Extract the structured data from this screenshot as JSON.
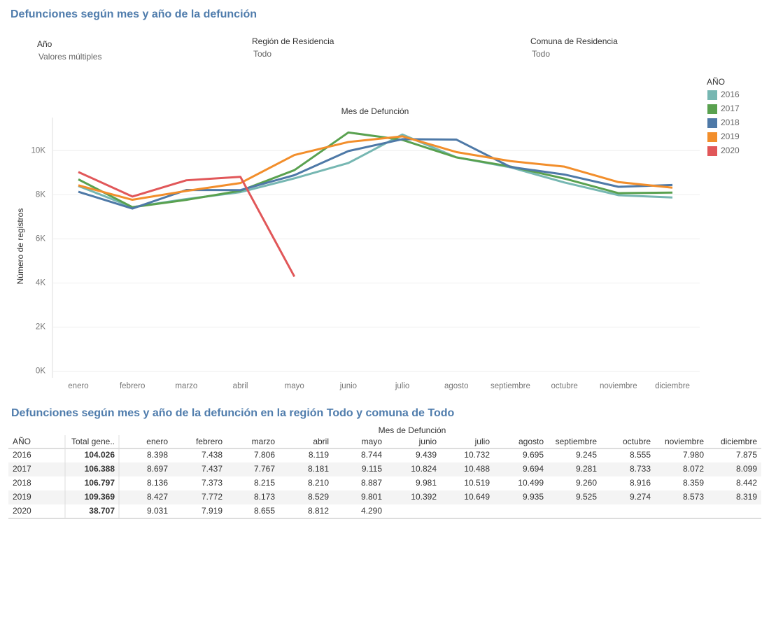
{
  "dashboard_title": "Defunciones según mes y año de la defunción",
  "filters": [
    {
      "label": "Año",
      "value": "Valores múltiples"
    },
    {
      "label": "Región de Residencia",
      "value": "Todo"
    },
    {
      "label": "Comuna de Residencia",
      "value": "Todo"
    }
  ],
  "chart_data": {
    "type": "line",
    "x_label": "Mes de Defunción",
    "y_label": "Número de registros",
    "legend_title": "AÑO",
    "legend": "right",
    "grid": true,
    "categories": [
      "enero",
      "febrero",
      "marzo",
      "abril",
      "mayo",
      "junio",
      "julio",
      "agosto",
      "septiembre",
      "octubre",
      "noviembre",
      "diciembre"
    ],
    "ylim": [
      -300,
      11500
    ],
    "yticks": [
      {
        "value": 0,
        "label": "0K"
      },
      {
        "value": 2000,
        "label": "2K"
      },
      {
        "value": 4000,
        "label": "4K"
      },
      {
        "value": 6000,
        "label": "6K"
      },
      {
        "value": 8000,
        "label": "8K"
      },
      {
        "value": 10000,
        "label": "10K"
      }
    ],
    "series": [
      {
        "name": "2016",
        "color": "#76b7b2",
        "values": [
          8398,
          7438,
          7806,
          8119,
          8744,
          9439,
          10732,
          9695,
          9245,
          8555,
          7980,
          7875
        ]
      },
      {
        "name": "2017",
        "color": "#59a14f",
        "values": [
          8697,
          7437,
          7767,
          8181,
          9115,
          10824,
          10488,
          9694,
          9281,
          8733,
          8072,
          8099
        ]
      },
      {
        "name": "2018",
        "color": "#4e79a7",
        "values": [
          8136,
          7373,
          8215,
          8210,
          8887,
          9981,
          10519,
          10499,
          9260,
          8916,
          8359,
          8442
        ]
      },
      {
        "name": "2019",
        "color": "#f28e2b",
        "values": [
          8427,
          7772,
          8173,
          8529,
          9801,
          10392,
          10649,
          9935,
          9525,
          9274,
          8573,
          8319
        ]
      },
      {
        "name": "2020",
        "color": "#e15759",
        "values": [
          9031,
          7919,
          8655,
          8812,
          4290,
          null,
          null,
          null,
          null,
          null,
          null,
          null
        ]
      }
    ]
  },
  "table": {
    "title": "Defunciones según mes y año de la defunción en la región Todo  y comuna de Todo",
    "group_header": "Mes de Defunción",
    "columns": [
      "AÑO",
      "Total gene..",
      "enero",
      "febrero",
      "marzo",
      "abril",
      "mayo",
      "junio",
      "julio",
      "agosto",
      "septiembre",
      "octubre",
      "noviembre",
      "diciembre"
    ],
    "rows": [
      [
        "2016",
        "104.026",
        "8.398",
        "7.438",
        "7.806",
        "8.119",
        "8.744",
        "9.439",
        "10.732",
        "9.695",
        "9.245",
        "8.555",
        "7.980",
        "7.875"
      ],
      [
        "2017",
        "106.388",
        "8.697",
        "7.437",
        "7.767",
        "8.181",
        "9.115",
        "10.824",
        "10.488",
        "9.694",
        "9.281",
        "8.733",
        "8.072",
        "8.099"
      ],
      [
        "2018",
        "106.797",
        "8.136",
        "7.373",
        "8.215",
        "8.210",
        "8.887",
        "9.981",
        "10.519",
        "10.499",
        "9.260",
        "8.916",
        "8.359",
        "8.442"
      ],
      [
        "2019",
        "109.369",
        "8.427",
        "7.772",
        "8.173",
        "8.529",
        "9.801",
        "10.392",
        "10.649",
        "9.935",
        "9.525",
        "9.274",
        "8.573",
        "8.319"
      ],
      [
        "2020",
        "38.707",
        "9.031",
        "7.919",
        "8.655",
        "8.812",
        "4.290"
      ]
    ]
  }
}
